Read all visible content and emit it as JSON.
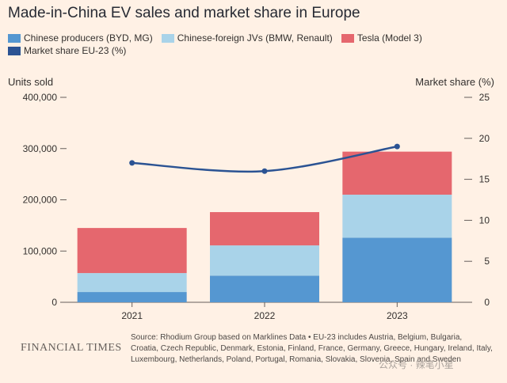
{
  "header": {
    "title": "Made-in-China EV sales and market share in Europe"
  },
  "legend": {
    "items": [
      {
        "label": "Chinese producers (BYD, MG)",
        "color": "#5597d1"
      },
      {
        "label": "Chinese-foreign JVs (BMW, Renault)",
        "color": "#a9d3e9"
      },
      {
        "label": "Tesla (Model 3)",
        "color": "#e5676e"
      },
      {
        "label": "Market share EU-23 (%)",
        "color": "#2b5393"
      }
    ]
  },
  "axes": {
    "left_title": "Units sold",
    "right_title": "Market share (%)"
  },
  "chart_data": {
    "type": "bar",
    "stacked": true,
    "categories": [
      "2021",
      "2022",
      "2023"
    ],
    "series": [
      {
        "name": "Chinese producers (BYD, MG)",
        "color": "#5597d1",
        "values": [
          20000,
          52000,
          126000
        ]
      },
      {
        "name": "Chinese-foreign JVs (BMW, Renault)",
        "color": "#a9d3e9",
        "values": [
          37000,
          59000,
          84000
        ]
      },
      {
        "name": "Tesla (Model 3)",
        "color": "#e5676e",
        "values": [
          88000,
          65000,
          84000
        ]
      }
    ],
    "line_series": {
      "name": "Market share EU-23 (%)",
      "color": "#2b5393",
      "axis": "right",
      "values": [
        17,
        16,
        19
      ]
    },
    "ylim": [
      0,
      400000
    ],
    "y_ticks": [
      "0",
      "100,000",
      "200,000",
      "300,000",
      "400,000"
    ],
    "y2lim": [
      0,
      25
    ],
    "y2_ticks": [
      "0",
      "5",
      "10",
      "15",
      "20",
      "25"
    ],
    "ylabel": "Units sold",
    "y2label": "Market share (%)"
  },
  "footer": {
    "logo": "FINANCIAL TIMES",
    "source_lines": [
      "Source: Rhodium Group based on Marklines Data • EU-23 includes Austria, Belgium, Bulgaria,",
      "Croatia, Czech Republic, Denmark, Estonia, Finland, France, Germany, Greece, Hungary, Ireland, Italy,",
      "Luxembourg, Netherlands, Poland, Portugal, Romania, Slovakia, Slovenia, Spain and Sweden"
    ],
    "watermark": "公众号 · 辣笔小星"
  }
}
